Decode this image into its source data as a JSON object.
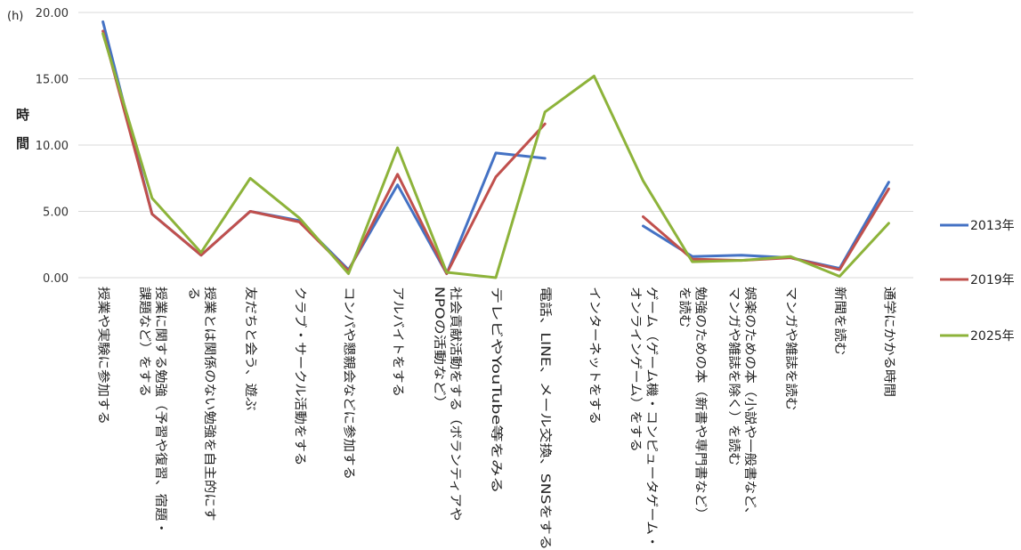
{
  "chart_data": {
    "type": "line",
    "unit_label": "(h)",
    "ylabel": "時間",
    "ylim": [
      0,
      20
    ],
    "yticks": [
      "0.00",
      "5.00",
      "10.00",
      "15.00",
      "20.00"
    ],
    "grid": true,
    "legend": "right",
    "categories": [
      [
        "授業や実験に参加する"
      ],
      [
        "授業に関する勉強（予習や復習、宿題・",
        "課題など）をする"
      ],
      [
        "授業とは関係のない勉強を自主的にす",
        "る"
      ],
      [
        "友だちと会う、遊ぶ"
      ],
      [
        "クラブ・サークル活動をする"
      ],
      [
        "コンパや懇親会などに参加する"
      ],
      [
        "アルバイトをする"
      ],
      [
        "社会貢献活動をする（ボランティアや",
        "NPOの活動など）"
      ],
      [
        "テレビやYouTube等をみる"
      ],
      [
        "電話、LINE、メール交換、SNSをする"
      ],
      [
        "インターネットをする"
      ],
      [
        "ゲーム（ゲーム機・コンピュータゲーム・",
        "オンラインゲーム）をする"
      ],
      [
        "勉強のための本（新書や専門書など）",
        "を読む"
      ],
      [
        "娯楽のための本（小説や一般書など、",
        "マンガや雑誌を除く）を読む"
      ],
      [
        "マンガや雑誌を読む"
      ],
      [
        "新聞を読む"
      ],
      [
        "通学にかかる時間"
      ]
    ],
    "series": [
      {
        "name": "2013年",
        "color": "#4472c4",
        "values": [
          19.3,
          4.8,
          1.7,
          5.0,
          4.3,
          0.6,
          7.0,
          0.3,
          9.4,
          9.0,
          null,
          3.9,
          1.6,
          1.7,
          1.5,
          0.7,
          7.2
        ]
      },
      {
        "name": "2019年",
        "color": "#c0504d",
        "values": [
          18.6,
          4.8,
          1.7,
          5.0,
          4.2,
          0.5,
          7.8,
          0.3,
          7.6,
          11.6,
          null,
          4.6,
          1.4,
          1.3,
          1.5,
          0.6,
          6.7
        ]
      },
      {
        "name": "2025年",
        "color": "#8db33a",
        "values": [
          18.4,
          6.0,
          1.9,
          7.5,
          4.5,
          0.3,
          9.8,
          0.4,
          0.0,
          12.5,
          15.2,
          7.3,
          1.2,
          1.3,
          1.6,
          0.1,
          4.1
        ]
      }
    ]
  }
}
